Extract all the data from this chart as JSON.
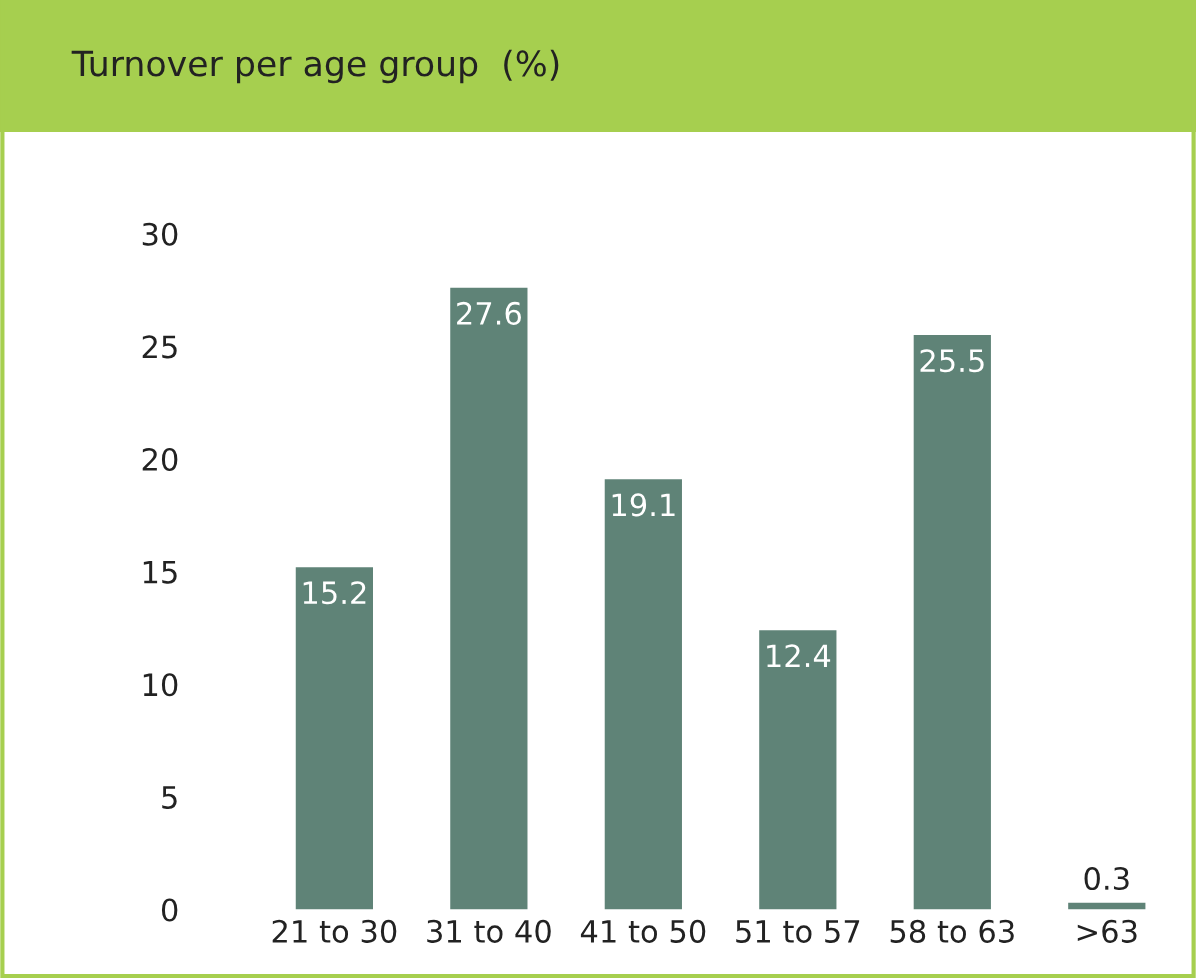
{
  "chart_data": {
    "type": "bar",
    "title": "Turnover per age group  (%)",
    "categories": [
      "21 to 30",
      "31 to 40",
      "41 to 50",
      "51 to 57",
      "58 to 63",
      ">63"
    ],
    "values": [
      15.2,
      27.6,
      19.1,
      12.4,
      25.5,
      0.3
    ],
    "color": "#5f8377",
    "ylim": [
      0,
      30
    ],
    "yticks": [
      0,
      5,
      10,
      15,
      20,
      25,
      30
    ],
    "grid": false,
    "data_labels": true
  }
}
